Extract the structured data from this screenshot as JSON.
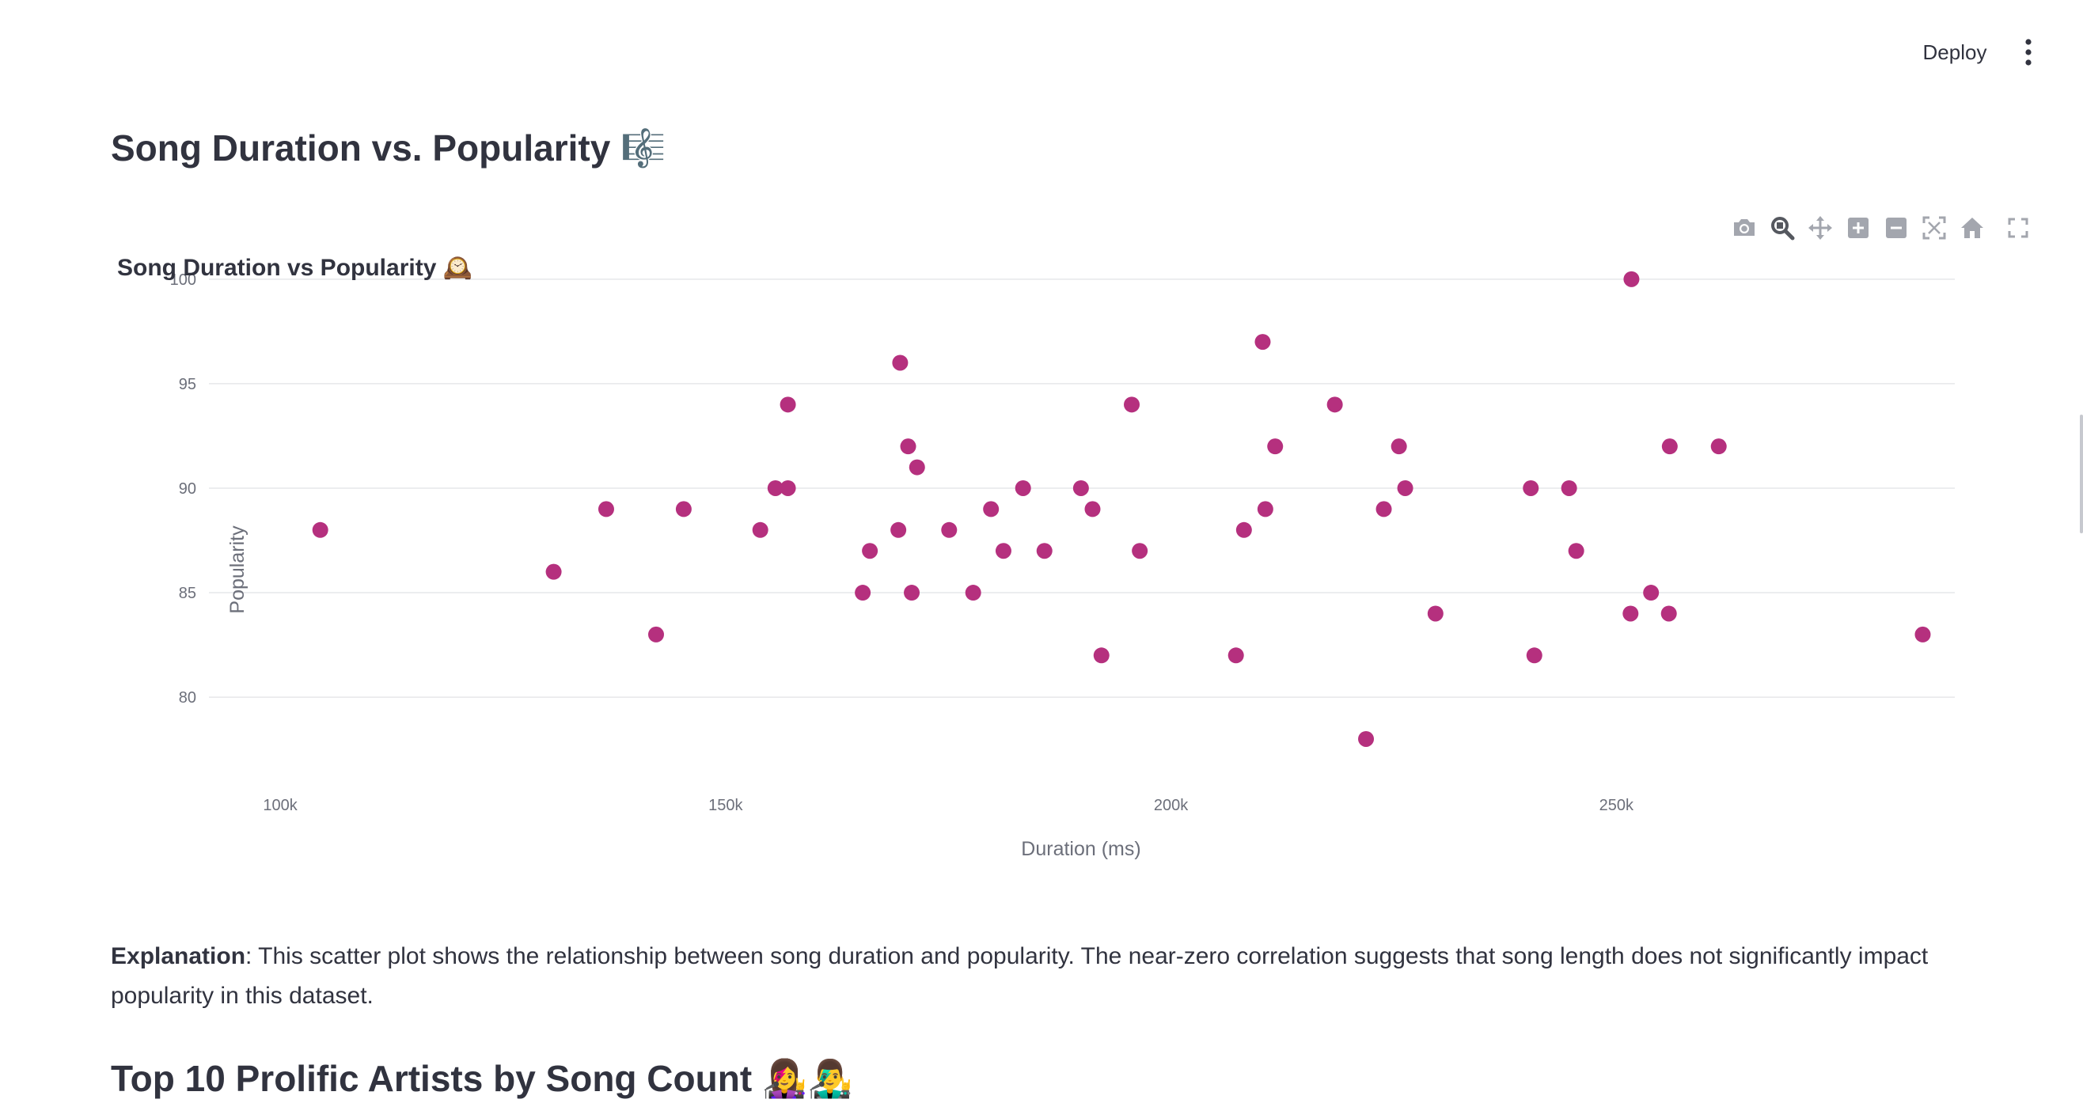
{
  "header": {
    "deploy_label": "Deploy",
    "menu_icon": "vertical-ellipsis-icon"
  },
  "section1": {
    "title": "Song Duration vs. Popularity 🎼"
  },
  "modebar": {
    "icons": [
      "camera-icon",
      "zoom-icon",
      "pan-icon",
      "zoom-in-icon",
      "zoom-out-icon",
      "autoscale-icon",
      "reset-axes-icon",
      "fullscreen-icon"
    ]
  },
  "chart_data": {
    "type": "scatter",
    "title": "Song Duration vs Popularity 🕰️",
    "xlabel": "Duration (ms)",
    "ylabel": "Popularity",
    "xlim": [
      92000,
      288000
    ],
    "ylim": [
      75.5,
      102
    ],
    "xticks": [
      100000,
      150000,
      200000,
      250000
    ],
    "xtick_labels": [
      "100k",
      "150k",
      "200k",
      "250k"
    ],
    "yticks": [
      80,
      85,
      90,
      95,
      100
    ],
    "ytick_labels": [
      "80",
      "85",
      "90",
      "95",
      "100"
    ],
    "grid": true,
    "marker_color": "#b5307e",
    "points": [
      {
        "x": 104500,
        "y": 88
      },
      {
        "x": 130700,
        "y": 86
      },
      {
        "x": 136600,
        "y": 89
      },
      {
        "x": 142200,
        "y": 83
      },
      {
        "x": 145300,
        "y": 89
      },
      {
        "x": 153900,
        "y": 88
      },
      {
        "x": 155600,
        "y": 90
      },
      {
        "x": 157000,
        "y": 90
      },
      {
        "x": 157000,
        "y": 94
      },
      {
        "x": 165400,
        "y": 85
      },
      {
        "x": 166200,
        "y": 87
      },
      {
        "x": 169400,
        "y": 88
      },
      {
        "x": 169600,
        "y": 96
      },
      {
        "x": 170500,
        "y": 92
      },
      {
        "x": 170900,
        "y": 85
      },
      {
        "x": 171500,
        "y": 91
      },
      {
        "x": 175100,
        "y": 88
      },
      {
        "x": 177800,
        "y": 85
      },
      {
        "x": 179800,
        "y": 89
      },
      {
        "x": 181200,
        "y": 87
      },
      {
        "x": 183400,
        "y": 90
      },
      {
        "x": 185800,
        "y": 87
      },
      {
        "x": 189900,
        "y": 90
      },
      {
        "x": 191200,
        "y": 89
      },
      {
        "x": 192200,
        "y": 82
      },
      {
        "x": 195600,
        "y": 94
      },
      {
        "x": 196500,
        "y": 87
      },
      {
        "x": 207300,
        "y": 82
      },
      {
        "x": 208200,
        "y": 88
      },
      {
        "x": 210300,
        "y": 97
      },
      {
        "x": 210600,
        "y": 89
      },
      {
        "x": 211700,
        "y": 92
      },
      {
        "x": 218400,
        "y": 94
      },
      {
        "x": 221900,
        "y": 78
      },
      {
        "x": 223900,
        "y": 89
      },
      {
        "x": 225600,
        "y": 92
      },
      {
        "x": 226300,
        "y": 90
      },
      {
        "x": 229700,
        "y": 84
      },
      {
        "x": 240400,
        "y": 90
      },
      {
        "x": 240800,
        "y": 82
      },
      {
        "x": 244700,
        "y": 90
      },
      {
        "x": 245500,
        "y": 87
      },
      {
        "x": 251600,
        "y": 84
      },
      {
        "x": 251700,
        "y": 100
      },
      {
        "x": 253900,
        "y": 85
      },
      {
        "x": 255900,
        "y": 84
      },
      {
        "x": 256000,
        "y": 92
      },
      {
        "x": 261500,
        "y": 92
      },
      {
        "x": 284400,
        "y": 83
      }
    ]
  },
  "explanation": {
    "label": "Explanation",
    "text": ": This scatter plot shows the relationship between song duration and popularity. The near-zero correlation suggests that song length does not significantly impact popularity in this dataset."
  },
  "section2": {
    "title": "Top 10 Prolific Artists by Song Count 👩‍🎤👨‍🎤"
  }
}
